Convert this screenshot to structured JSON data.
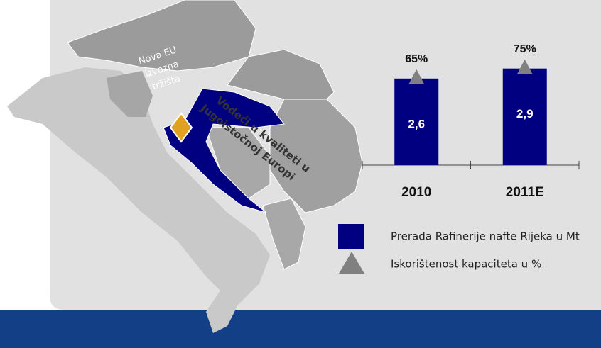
{
  "chart_data": {
    "type": "bar",
    "categories": [
      "2010",
      "2011E"
    ],
    "series": [
      {
        "name": "Prerada Rafinerije nafte Rijeka u Mt",
        "color": "#000080",
        "values": [
          2.6,
          2.9
        ],
        "value_labels": [
          "2,6",
          "2,9"
        ]
      },
      {
        "name": "Iskorištenost kapaciteta u %",
        "color": "#808080",
        "marker": "triangle",
        "values": [
          65,
          75
        ],
        "value_labels": [
          "65%",
          "75%"
        ]
      }
    ],
    "annotations": [
      [
        "Nova EU",
        "izvozna",
        "tržišta"
      ],
      [
        "Vodeći u kvaliteti u",
        "Jugoistočnoj Europi"
      ]
    ]
  }
}
